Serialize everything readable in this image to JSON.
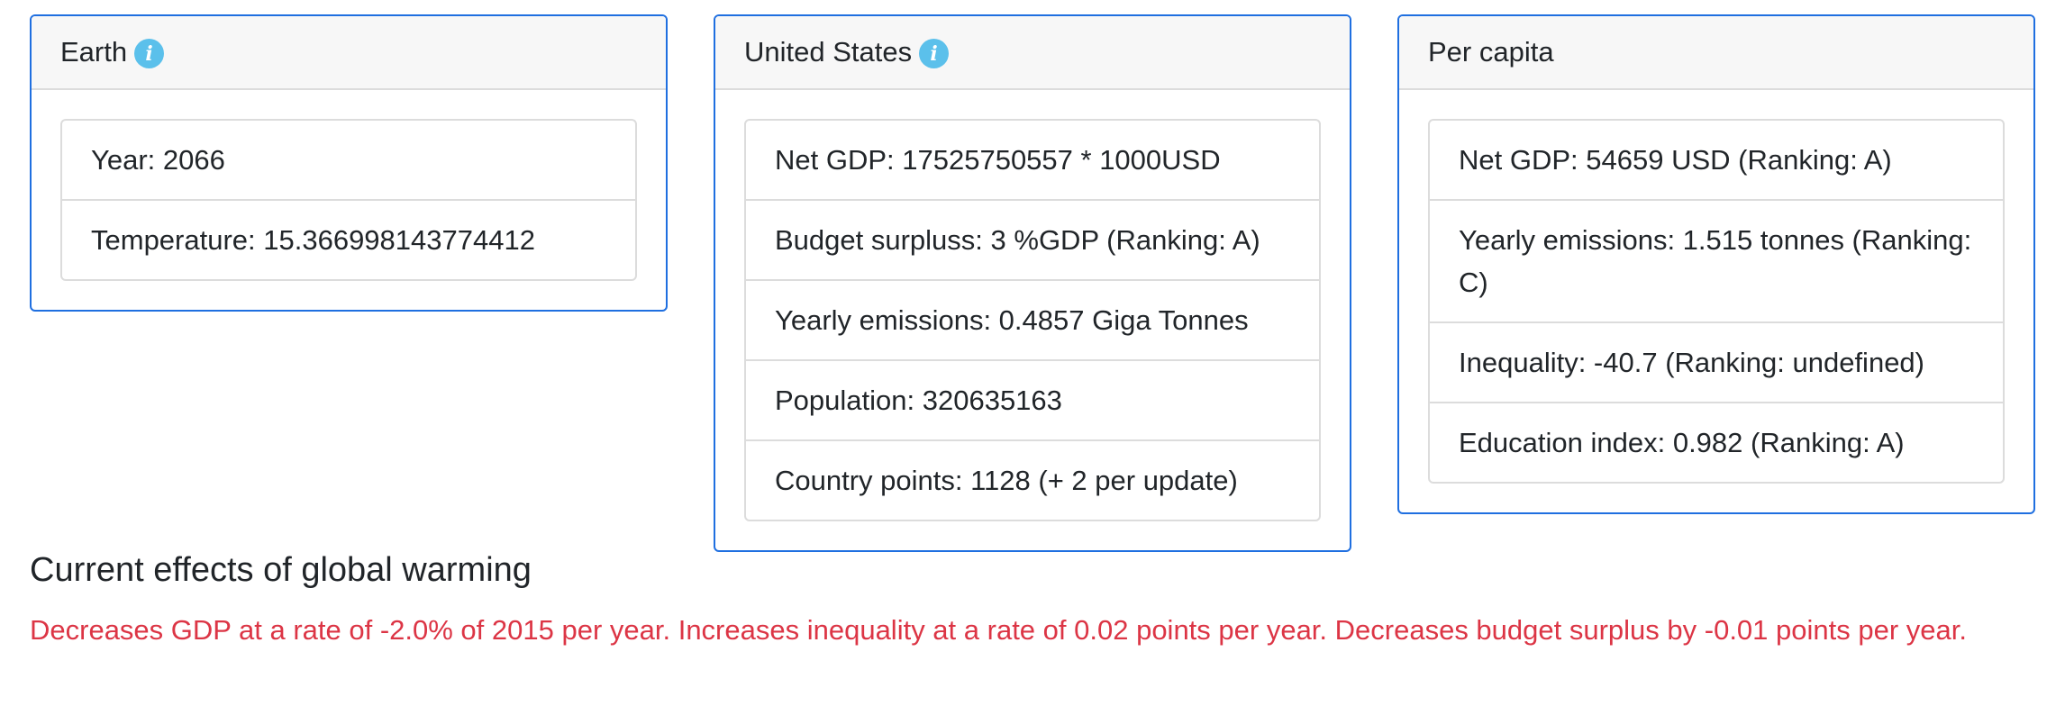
{
  "earth": {
    "title": "Earth",
    "items": [
      "Year: 2066",
      "Temperature: 15.366998143774412"
    ]
  },
  "country": {
    "title": "United States",
    "items": [
      "Net GDP: 17525750557 * 1000USD",
      "Budget surpluss: 3 %GDP (Ranking: A)",
      "Yearly emissions: 0.4857 Giga Tonnes",
      "Population: 320635163",
      "Country points: 1128 (+ 2 per update)"
    ]
  },
  "per_capita": {
    "title": "Per capita",
    "items": [
      "Net GDP: 54659 USD (Ranking: A)",
      "Yearly emissions: 1.515 tonnes (Ranking: C)",
      "Inequality: -40.7 (Ranking: undefined)",
      "Education index: 0.982 (Ranking: A)"
    ]
  },
  "effects": {
    "title": "Current effects of global warming",
    "text": "Decreases GDP at a rate of -2.0% of 2015 per year. Increases inequality at a rate of 0.02 points per year. Decreases budget surplus by -0.01 points per year."
  },
  "colors": {
    "card_border": "#1f6fe0",
    "info_icon": "#5bc0eb",
    "effects_text": "#dc3545"
  },
  "icons": {
    "info": "info-icon"
  }
}
